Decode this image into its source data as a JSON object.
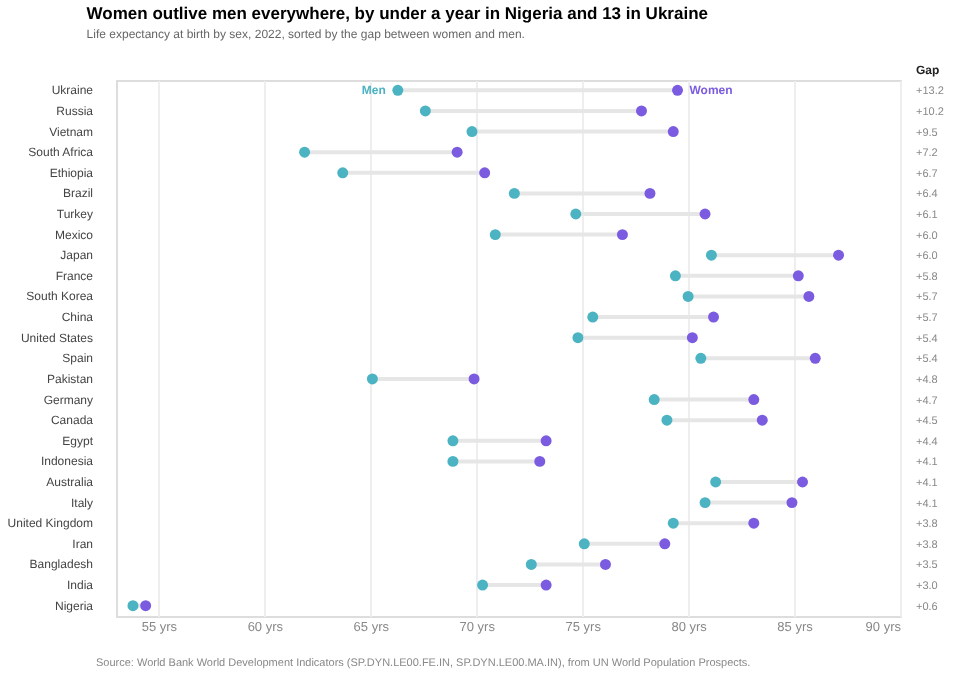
{
  "chart_data": {
    "type": "scatter",
    "title": "Women outlive men everywhere, by under a year in Nigeria and 13 in Ukraine",
    "subtitle": "Life expectancy at birth by sex, 2022, sorted by the gap between women and men.",
    "categories": [
      "Ukraine",
      "Russia",
      "Vietnam",
      "South Africa",
      "Ethiopia",
      "Brazil",
      "Turkey",
      "Mexico",
      "Japan",
      "France",
      "South Korea",
      "China",
      "United States",
      "Spain",
      "Pakistan",
      "Germany",
      "Canada",
      "Egypt",
      "Indonesia",
      "Australia",
      "Italy",
      "United Kingdom",
      "Iran",
      "Bangladesh",
      "India",
      "Nigeria"
    ],
    "series": [
      {
        "name": "Men",
        "color": "#4bb3c1",
        "values": [
          66.3,
          67.6,
          69.8,
          61.9,
          63.7,
          71.8,
          74.7,
          70.9,
          81.1,
          79.4,
          80.0,
          75.5,
          74.8,
          80.6,
          65.1,
          78.4,
          79.0,
          68.9,
          68.9,
          81.3,
          80.8,
          79.3,
          75.1,
          72.6,
          70.3,
          53.8
        ]
      },
      {
        "name": "Women",
        "color": "#7b5ce0",
        "values": [
          79.5,
          77.8,
          79.3,
          69.1,
          70.4,
          78.2,
          80.8,
          76.9,
          87.1,
          85.2,
          85.7,
          81.2,
          80.2,
          86.0,
          69.9,
          83.1,
          83.5,
          73.3,
          73.0,
          85.4,
          84.9,
          83.1,
          78.9,
          76.1,
          73.3,
          54.4
        ]
      }
    ],
    "xlim": [
      53,
      90
    ],
    "xticks": [
      {
        "value": 55,
        "label": "55 yrs"
      },
      {
        "value": 60,
        "label": "60 yrs"
      },
      {
        "value": 65,
        "label": "65 yrs"
      },
      {
        "value": 70,
        "label": "70 yrs"
      },
      {
        "value": 75,
        "label": "75 yrs"
      },
      {
        "value": 80,
        "label": "80 yrs"
      },
      {
        "value": 85,
        "label": "85 yrs"
      },
      {
        "value": 90,
        "label": "90 yrs"
      }
    ],
    "orientation": "horizontal",
    "grid": "x",
    "legend": false,
    "marker": "circle",
    "annotations": [
      "Gap",
      "+13.2",
      "+10.2",
      "+9.5",
      "+7.2",
      "+6.7",
      "+6.4",
      "+6.1",
      "+6.0",
      "+6.0",
      "+5.8",
      "+5.7",
      "+5.7",
      "+5.4",
      "+5.4",
      "+4.8",
      "+4.7",
      "+4.5",
      "+4.4",
      "+4.1",
      "+4.1",
      "+4.1",
      "+3.8",
      "+3.8",
      "+3.5",
      "+3.0",
      "+0.6",
      "Source: World Bank World Development Indicators (SP.DYN.LE00.FE.IN, SP.DYN.LE00.MA.IN), from UN World Population Prospects."
    ]
  }
}
